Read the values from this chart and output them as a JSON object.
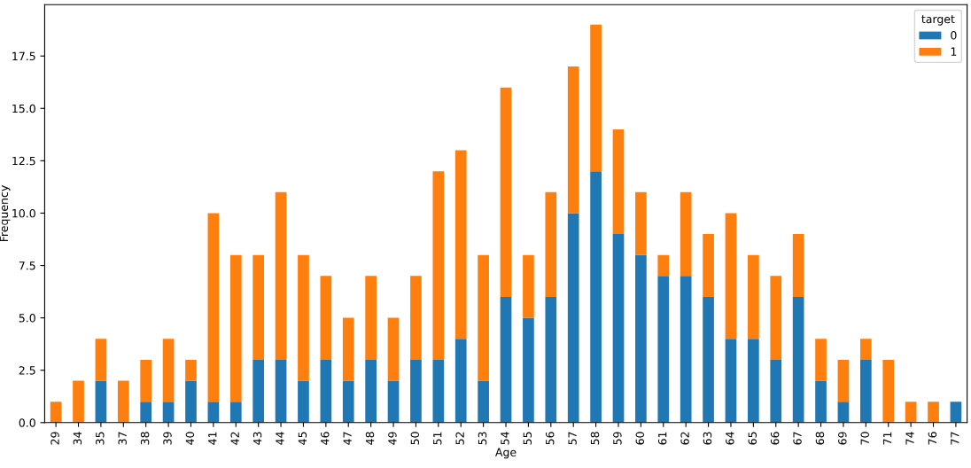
{
  "chart_data": {
    "type": "bar",
    "stacked": true,
    "xlabel": "Age",
    "ylabel": "Frequency",
    "legend_title": "target",
    "legend": "top right",
    "grid": false,
    "categories": [
      "29",
      "34",
      "35",
      "37",
      "38",
      "39",
      "40",
      "41",
      "42",
      "43",
      "44",
      "45",
      "46",
      "47",
      "48",
      "49",
      "50",
      "51",
      "52",
      "53",
      "54",
      "55",
      "56",
      "57",
      "58",
      "59",
      "60",
      "61",
      "62",
      "63",
      "64",
      "65",
      "66",
      "67",
      "68",
      "69",
      "70",
      "71",
      "74",
      "76",
      "77"
    ],
    "series": [
      {
        "name": "0",
        "color": "#1f77b4",
        "values": [
          0,
          0,
          2,
          0,
          1,
          1,
          2,
          1,
          1,
          3,
          3,
          2,
          3,
          2,
          3,
          2,
          3,
          3,
          4,
          2,
          6,
          5,
          6,
          10,
          12,
          9,
          8,
          7,
          7,
          6,
          4,
          4,
          3,
          6,
          2,
          1,
          3,
          0,
          0,
          0,
          1
        ]
      },
      {
        "name": "1",
        "color": "#ff7f0e",
        "values": [
          1,
          2,
          2,
          2,
          2,
          3,
          1,
          9,
          7,
          5,
          8,
          6,
          4,
          3,
          4,
          3,
          4,
          9,
          9,
          6,
          10,
          3,
          5,
          7,
          7,
          5,
          3,
          1,
          4,
          3,
          6,
          4,
          4,
          3,
          2,
          2,
          1,
          3,
          1,
          1,
          0
        ]
      }
    ],
    "ylim": [
      0,
      19.95
    ],
    "yticks": [
      {
        "value": 0,
        "label": "0.0"
      },
      2.5,
      {
        "value": 5,
        "label": "5.0"
      },
      7.5,
      {
        "value": 10,
        "label": "10.0"
      },
      12.5,
      {
        "value": 15,
        "label": "15.0"
      },
      17.5
    ]
  }
}
